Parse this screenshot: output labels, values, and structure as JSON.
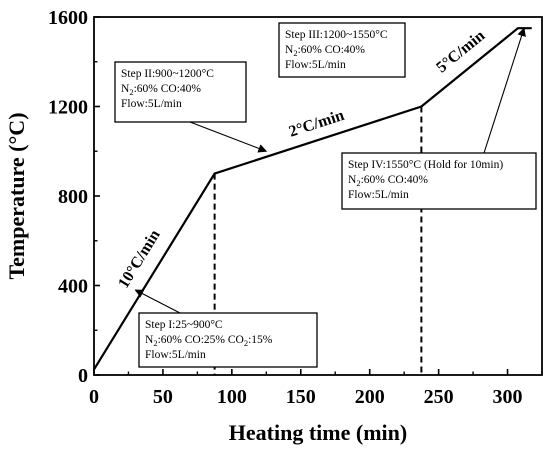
{
  "chart_data": {
    "type": "line",
    "xlabel": "Heating time (min)",
    "ylabel": "Temperature (°C)",
    "xlim": [
      0,
      325
    ],
    "ylim": [
      0,
      1600
    ],
    "xticks": [
      "0",
      "50",
      "100",
      "150",
      "200",
      "250",
      "300"
    ],
    "yticks": [
      "0",
      "400",
      "800",
      "1200",
      "1600"
    ],
    "series": [
      {
        "x": [
          0,
          87.5,
          237.5,
          307.5,
          317.5
        ],
        "y": [
          25,
          900,
          1200,
          1550,
          1550
        ]
      }
    ],
    "dashed_markers": [
      {
        "x": 87.5,
        "y": 900
      },
      {
        "x": 237.5,
        "y": 1200
      }
    ],
    "rate_labels": [
      {
        "text": "10°C/min",
        "segment": 0
      },
      {
        "text": "2°C/min",
        "segment": 1
      },
      {
        "text": "5°C/min",
        "segment": 2
      }
    ],
    "annotations": [
      {
        "step": "Step I:25~900°C",
        "gas": [
          {
            "name": "N",
            "sub": "2",
            "rest": ":60% CO:25% CO"
          },
          {
            "name": "",
            "sub": "2",
            "rest": ":15%"
          }
        ],
        "flow": "Flow:5L/min",
        "arrow_to": {
          "x": 30,
          "y": 380
        }
      },
      {
        "step": "Step II:900~1200°C",
        "gas": [
          {
            "name": "N",
            "sub": "2",
            "rest": ":60% CO:40%"
          }
        ],
        "flow": "Flow:5L/min",
        "arrow_to": {
          "x": 125,
          "y": 1000
        }
      },
      {
        "step": "Step III:1200~1550°C",
        "gas": [
          {
            "name": "N",
            "sub": "2",
            "rest": ":60% CO:40%"
          }
        ],
        "flow": "Flow:5L/min",
        "arrow_to": null
      },
      {
        "step": "Step IV:1550°C (Hold for 10min)",
        "gas": [
          {
            "name": "N",
            "sub": "2",
            "rest": ":60% CO:40%"
          }
        ],
        "flow": "Flow:5L/min",
        "arrow_to": {
          "x": 312,
          "y": 1550
        }
      }
    ]
  }
}
